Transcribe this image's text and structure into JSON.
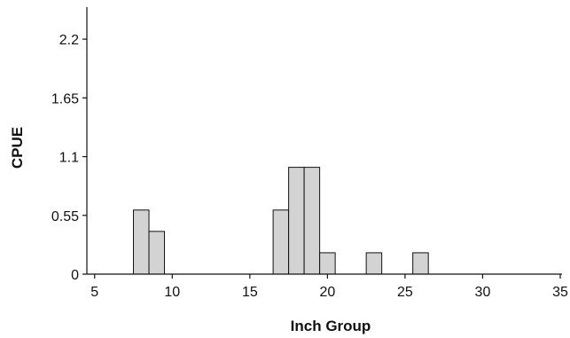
{
  "chart_data": {
    "type": "bar",
    "title": "",
    "xlabel": "Inch Group",
    "ylabel": "CPUE",
    "xlim": [
      4.5,
      35
    ],
    "ylim": [
      0,
      2.5
    ],
    "xticks": [
      5,
      10,
      15,
      20,
      25,
      30,
      35
    ],
    "xtick_labels": [
      "5",
      "10",
      "15",
      "20",
      "25",
      "30",
      "35"
    ],
    "yticks": [
      0,
      0.55,
      1.1,
      1.65,
      2.2
    ],
    "ytick_labels": [
      "0",
      "0.55",
      "1.1",
      "1.65",
      "2.2"
    ],
    "grid": false,
    "bar_fill": "#d3d3d3",
    "bar_stroke": "#111111",
    "series": [
      {
        "x": [
          8,
          9,
          17,
          18,
          19,
          20,
          23,
          26
        ],
        "values": [
          0.6,
          0.4,
          0.6,
          1.0,
          1.0,
          0.2,
          0.2,
          0.2
        ]
      }
    ]
  }
}
